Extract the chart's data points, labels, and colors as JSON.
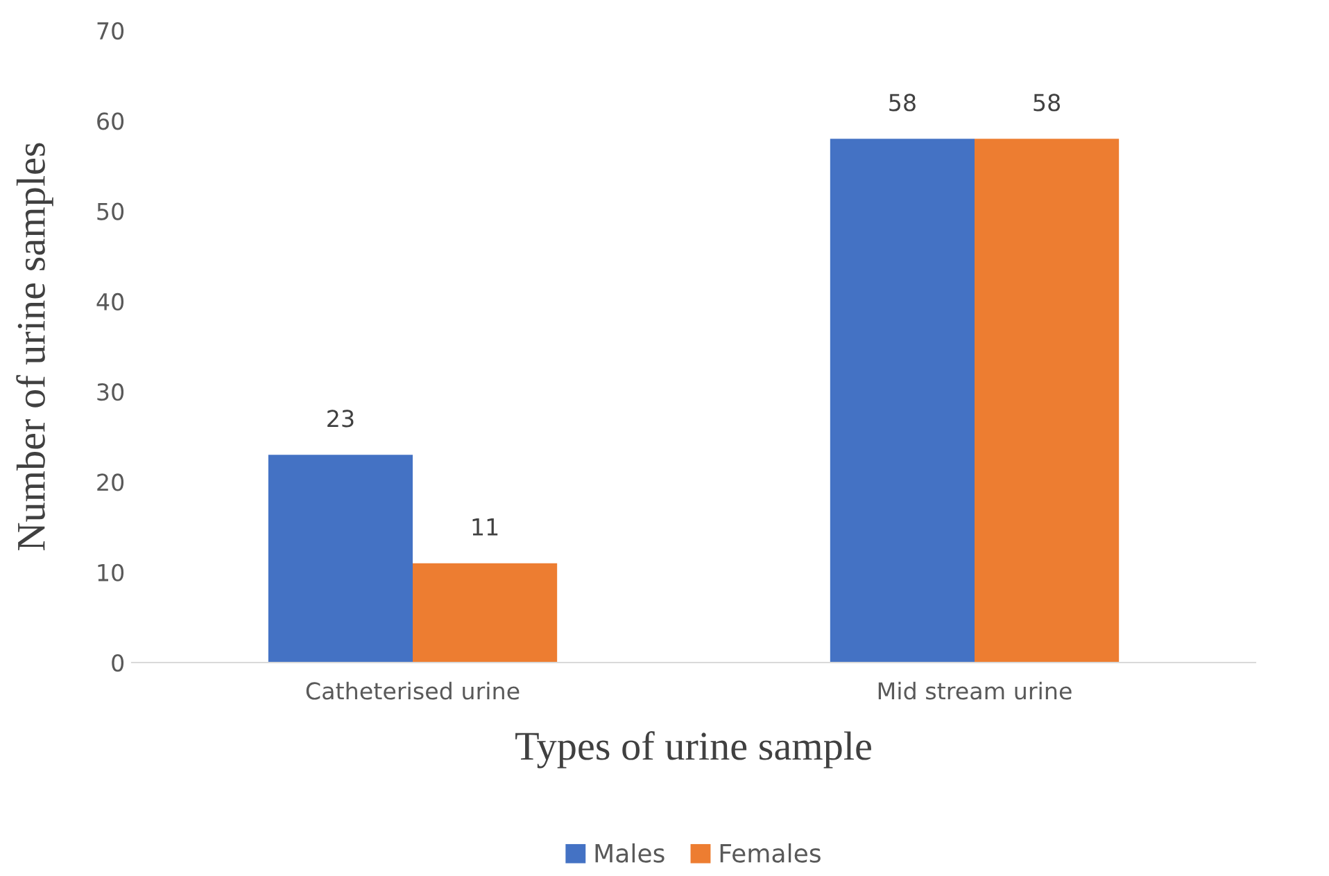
{
  "chart_data": {
    "type": "bar",
    "xlabel": "Types of urine sample",
    "ylabel": "Number of urine samples",
    "categories": [
      "Catheterised urine",
      "Mid stream urine"
    ],
    "series": [
      {
        "name": "Males",
        "color": "#4472c4",
        "values": [
          23,
          58
        ]
      },
      {
        "name": "Females",
        "color": "#ed7d31",
        "values": [
          11,
          58
        ]
      }
    ],
    "ylim": [
      0,
      70
    ],
    "yticks": [
      0,
      10,
      20,
      30,
      40,
      50,
      60,
      70
    ],
    "grid": false,
    "legend": "bottom",
    "data_labels": true
  }
}
